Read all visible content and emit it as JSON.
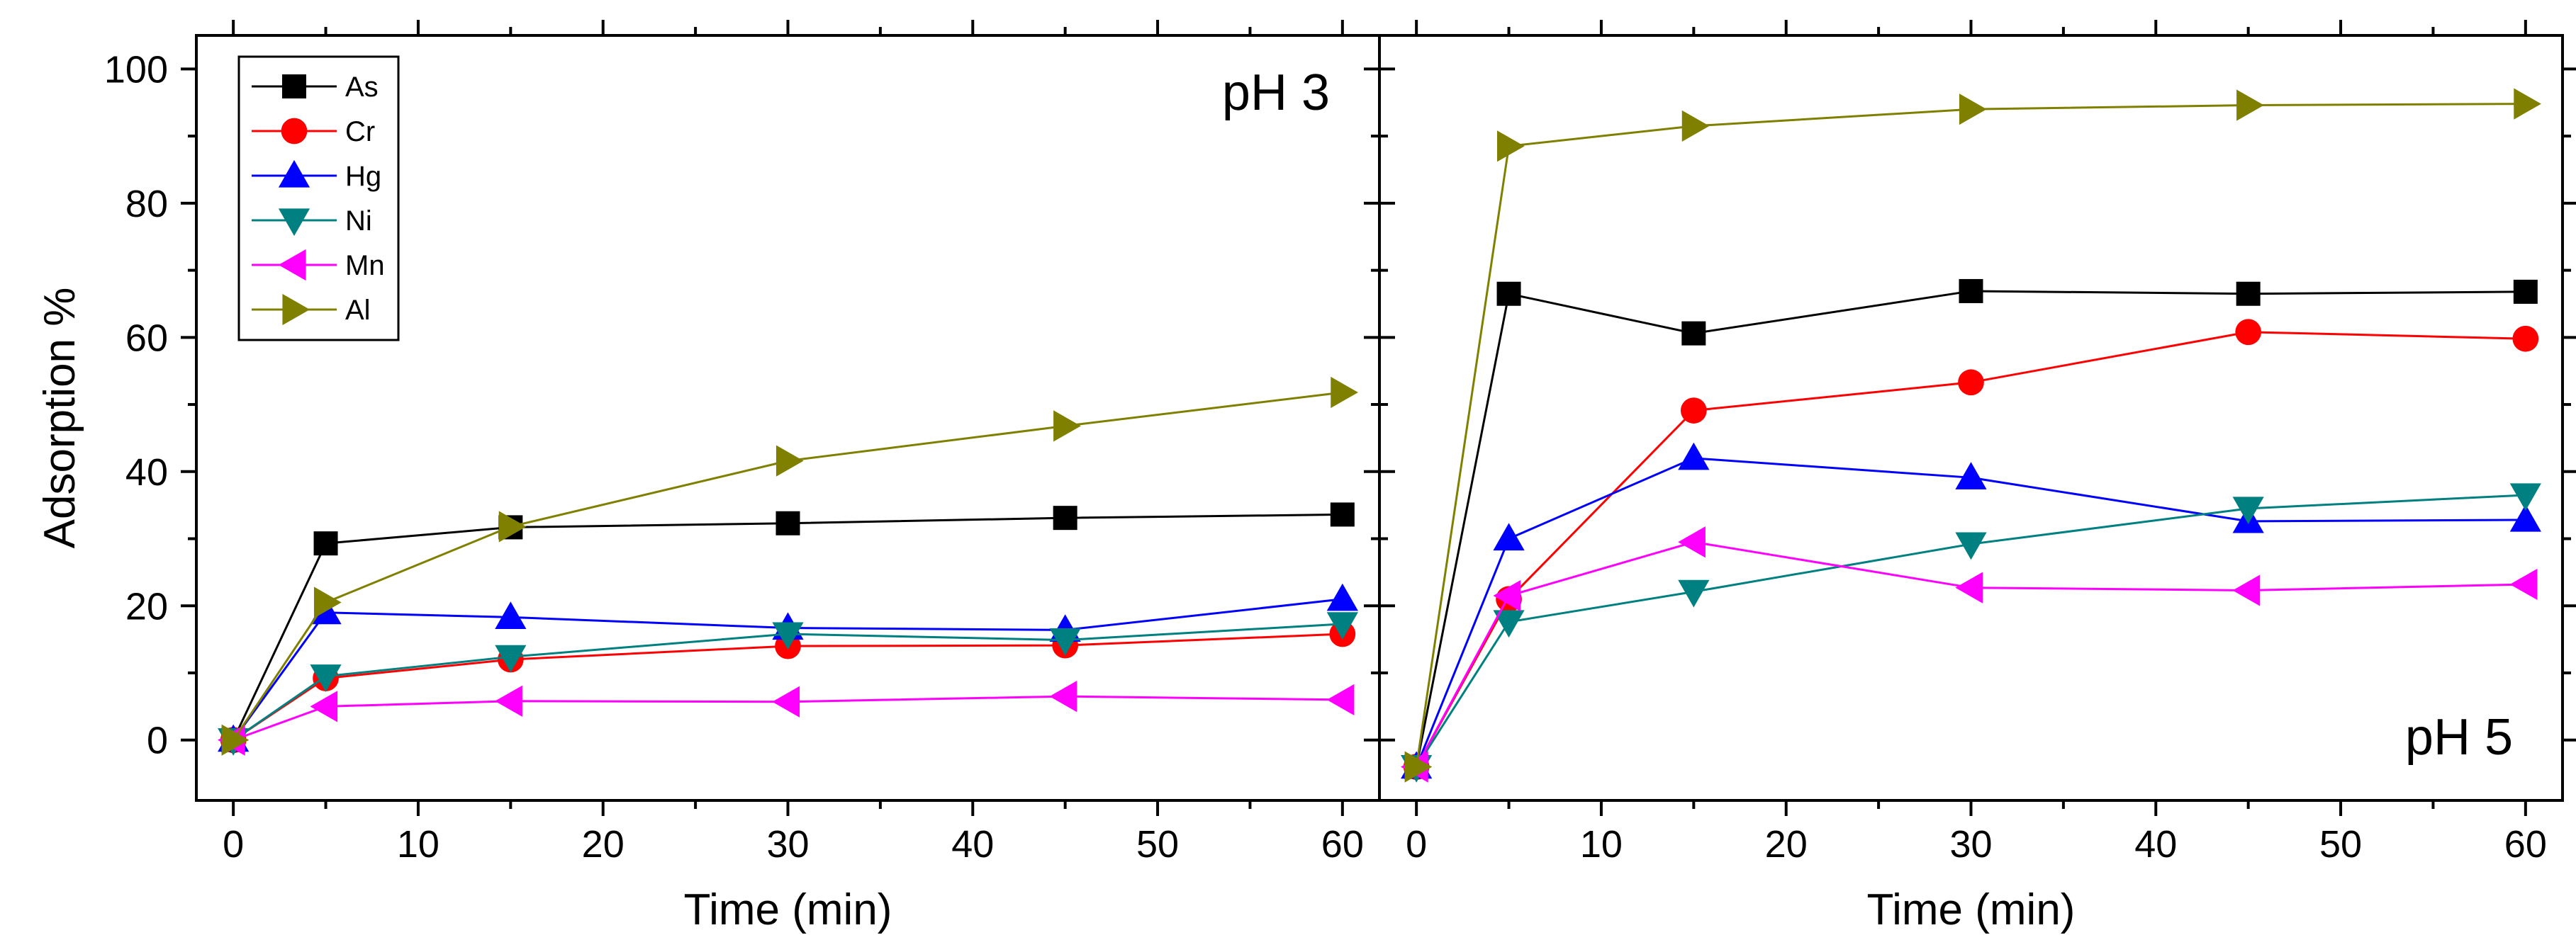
{
  "chart_data": [
    {
      "type": "line",
      "panel_label": "pH 3",
      "xlabel": "Time (min)",
      "ylabel": "Adsorption %",
      "xlim": [
        -2,
        62
      ],
      "ylim": [
        -9,
        105
      ],
      "x_ticks": [
        0,
        10,
        20,
        30,
        40,
        50,
        60
      ],
      "y_ticks": [
        0,
        20,
        40,
        60,
        80,
        100
      ],
      "x": [
        0,
        5,
        15,
        30,
        45,
        60
      ],
      "legend_position": "top-left",
      "series": [
        {
          "name": "As",
          "color": "#000000",
          "marker": "square",
          "values": [
            0,
            29.3,
            31.7,
            32.3,
            33.1,
            33.6
          ]
        },
        {
          "name": "Cr",
          "color": "#ff0000",
          "marker": "circle",
          "values": [
            0,
            9.2,
            12.0,
            14.0,
            14.1,
            15.8
          ]
        },
        {
          "name": "Hg",
          "color": "#0000ff",
          "marker": "triangle-up",
          "values": [
            0,
            19.0,
            18.3,
            16.7,
            16.4,
            21.0
          ]
        },
        {
          "name": "Ni",
          "color": "#008080",
          "marker": "triangle-down",
          "values": [
            0,
            9.5,
            12.4,
            15.8,
            14.9,
            17.3
          ]
        },
        {
          "name": "Mn",
          "color": "#ff00ff",
          "marker": "triangle-left",
          "values": [
            0,
            5.0,
            5.8,
            5.7,
            6.5,
            6.0
          ]
        },
        {
          "name": "Al",
          "color": "#808000",
          "marker": "triangle-right",
          "values": [
            0,
            20.5,
            31.8,
            41.6,
            46.8,
            51.8
          ]
        }
      ]
    },
    {
      "type": "line",
      "panel_label": "pH 5",
      "xlabel": "Time (min)",
      "ylabel": "",
      "xlim": [
        -2,
        62
      ],
      "ylim": [
        -9,
        105
      ],
      "x_ticks": [
        0,
        10,
        20,
        30,
        40,
        50,
        60
      ],
      "y_ticks": [],
      "x": [
        0,
        5,
        15,
        30,
        45,
        60
      ],
      "legend_position": "none",
      "series": [
        {
          "name": "As",
          "color": "#000000",
          "marker": "square",
          "values": [
            -4,
            66.5,
            60.6,
            66.9,
            66.5,
            66.8
          ]
        },
        {
          "name": "Cr",
          "color": "#ff0000",
          "marker": "circle",
          "values": [
            -4,
            21.0,
            49.1,
            53.3,
            60.8,
            59.8
          ]
        },
        {
          "name": "Hg",
          "color": "#0000ff",
          "marker": "triangle-up",
          "values": [
            -4,
            30.0,
            42.0,
            39.1,
            32.6,
            32.8
          ]
        },
        {
          "name": "Ni",
          "color": "#008080",
          "marker": "triangle-down",
          "values": [
            -4,
            17.6,
            22.1,
            29.2,
            34.5,
            36.5
          ]
        },
        {
          "name": "Mn",
          "color": "#ff00ff",
          "marker": "triangle-left",
          "values": [
            -4,
            21.5,
            29.5,
            22.7,
            22.3,
            23.2
          ]
        },
        {
          "name": "Al",
          "color": "#808000",
          "marker": "triangle-right",
          "values": [
            -4,
            88.5,
            91.5,
            94.0,
            94.6,
            94.8
          ]
        }
      ]
    }
  ]
}
